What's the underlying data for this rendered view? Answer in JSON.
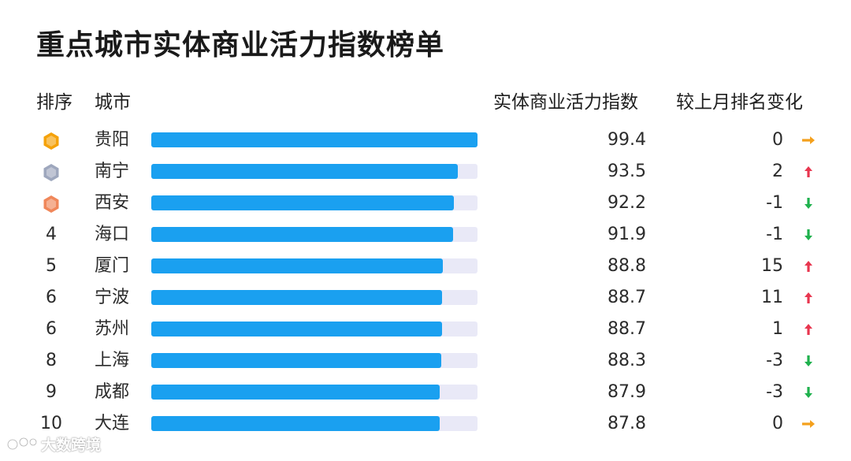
{
  "title": "重点城市实体商业活力指数榜单",
  "headers": {
    "rank": "排序",
    "city": "城市",
    "index": "实体商业活力指数",
    "change": "较上月排名变化"
  },
  "colors": {
    "bar": "#1aa0f0",
    "track": "#e9e9f7",
    "up": "#e8364f",
    "down": "#1fb14d",
    "flat": "#f4a01c",
    "gold": "#f5a20a",
    "silver": "#9ea7bd",
    "bronze": "#f0875a"
  },
  "rows": [
    {
      "rank": "1",
      "medal": "gold",
      "city": "贵阳",
      "index": "99.4",
      "change": "0",
      "direction": "flat"
    },
    {
      "rank": "2",
      "medal": "silver",
      "city": "南宁",
      "index": "93.5",
      "change": "2",
      "direction": "up"
    },
    {
      "rank": "3",
      "medal": "bronze",
      "city": "西安",
      "index": "92.2",
      "change": "-1",
      "direction": "down"
    },
    {
      "rank": "4",
      "medal": "",
      "city": "海口",
      "index": "91.9",
      "change": "-1",
      "direction": "down"
    },
    {
      "rank": "5",
      "medal": "",
      "city": "厦门",
      "index": "88.8",
      "change": "15",
      "direction": "up"
    },
    {
      "rank": "6",
      "medal": "",
      "city": "宁波",
      "index": "88.7",
      "change": "11",
      "direction": "up"
    },
    {
      "rank": "6",
      "medal": "",
      "city": "苏州",
      "index": "88.7",
      "change": "1",
      "direction": "up"
    },
    {
      "rank": "8",
      "medal": "",
      "city": "上海",
      "index": "88.3",
      "change": "-3",
      "direction": "down"
    },
    {
      "rank": "9",
      "medal": "",
      "city": "成都",
      "index": "87.9",
      "change": "-3",
      "direction": "down"
    },
    {
      "rank": "10",
      "medal": "",
      "city": "大连",
      "index": "87.8",
      "change": "0",
      "direction": "flat"
    }
  ],
  "chart_data": {
    "type": "bar",
    "title": "重点城市实体商业活力指数榜单",
    "categories": [
      "贵阳",
      "南宁",
      "西安",
      "海口",
      "厦门",
      "宁波",
      "苏州",
      "上海",
      "成都",
      "大连"
    ],
    "values": [
      99.4,
      93.5,
      92.2,
      91.9,
      88.8,
      88.7,
      88.7,
      88.3,
      87.9,
      87.8
    ],
    "xlim": [
      0,
      99.4
    ],
    "orientation": "horizontal",
    "grid": false
  },
  "watermark": "大数跨境"
}
